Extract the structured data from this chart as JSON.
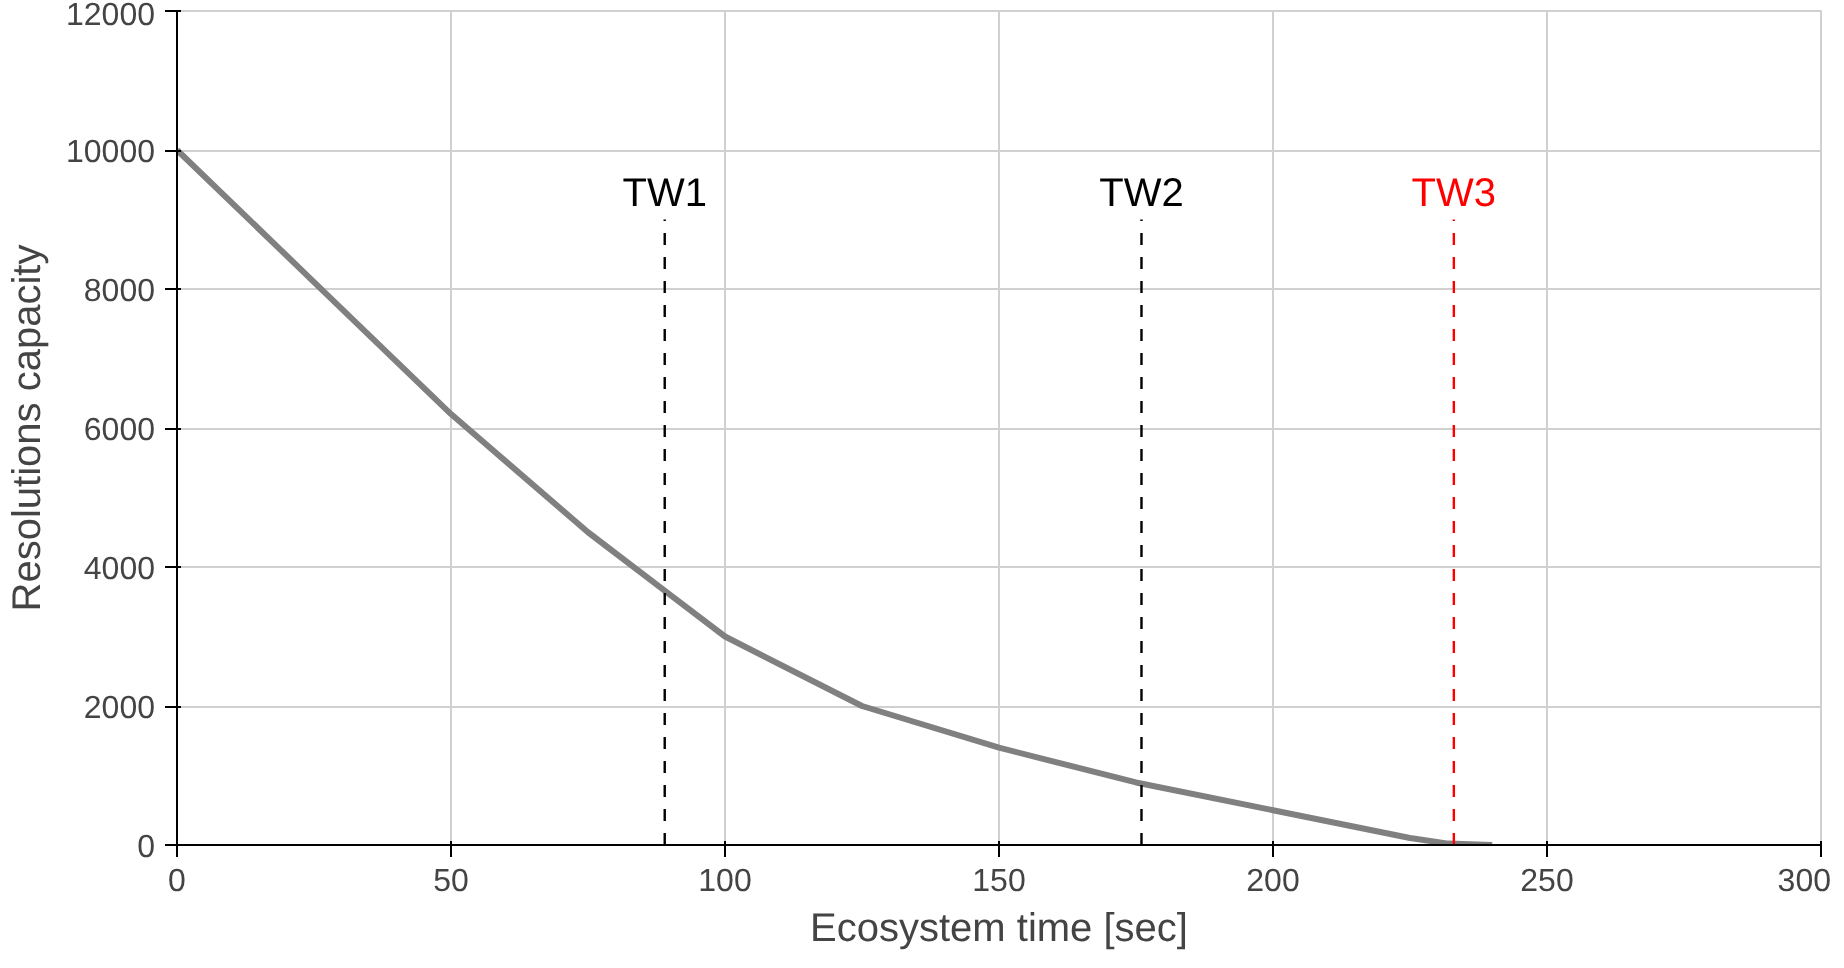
{
  "chart_data": {
    "type": "line",
    "xlabel": "Ecosystem time [sec]",
    "ylabel": "Resolutions capacity",
    "x": [
      0,
      25,
      50,
      75,
      90,
      100,
      125,
      150,
      175,
      200,
      225,
      232,
      240
    ],
    "series": [
      {
        "color": "#808080",
        "values": [
          10000,
          8100,
          6200,
          4500,
          3600,
          3000,
          2000,
          1400,
          900,
          500,
          100,
          20,
          0
        ]
      }
    ],
    "xlim": [
      0,
      300
    ],
    "ylim": [
      0,
      12000
    ],
    "xticks": [
      0,
      50,
      100,
      150,
      200,
      250,
      300
    ],
    "yticks": [
      0,
      2000,
      4000,
      6000,
      8000,
      10000,
      12000
    ],
    "grid": true,
    "marker": "none",
    "line_style": "solid",
    "ref_lines": [
      {
        "axis": "x",
        "value": 89,
        "label": "TW1",
        "color": "#000000",
        "line_style": "dashed"
      },
      {
        "axis": "x",
        "value": 176,
        "label": "TW2",
        "color": "#000000",
        "line_style": "dashed"
      },
      {
        "axis": "x",
        "value": 233,
        "label": "TW3",
        "color": "#ff0000",
        "line_style": "dashed"
      }
    ]
  }
}
